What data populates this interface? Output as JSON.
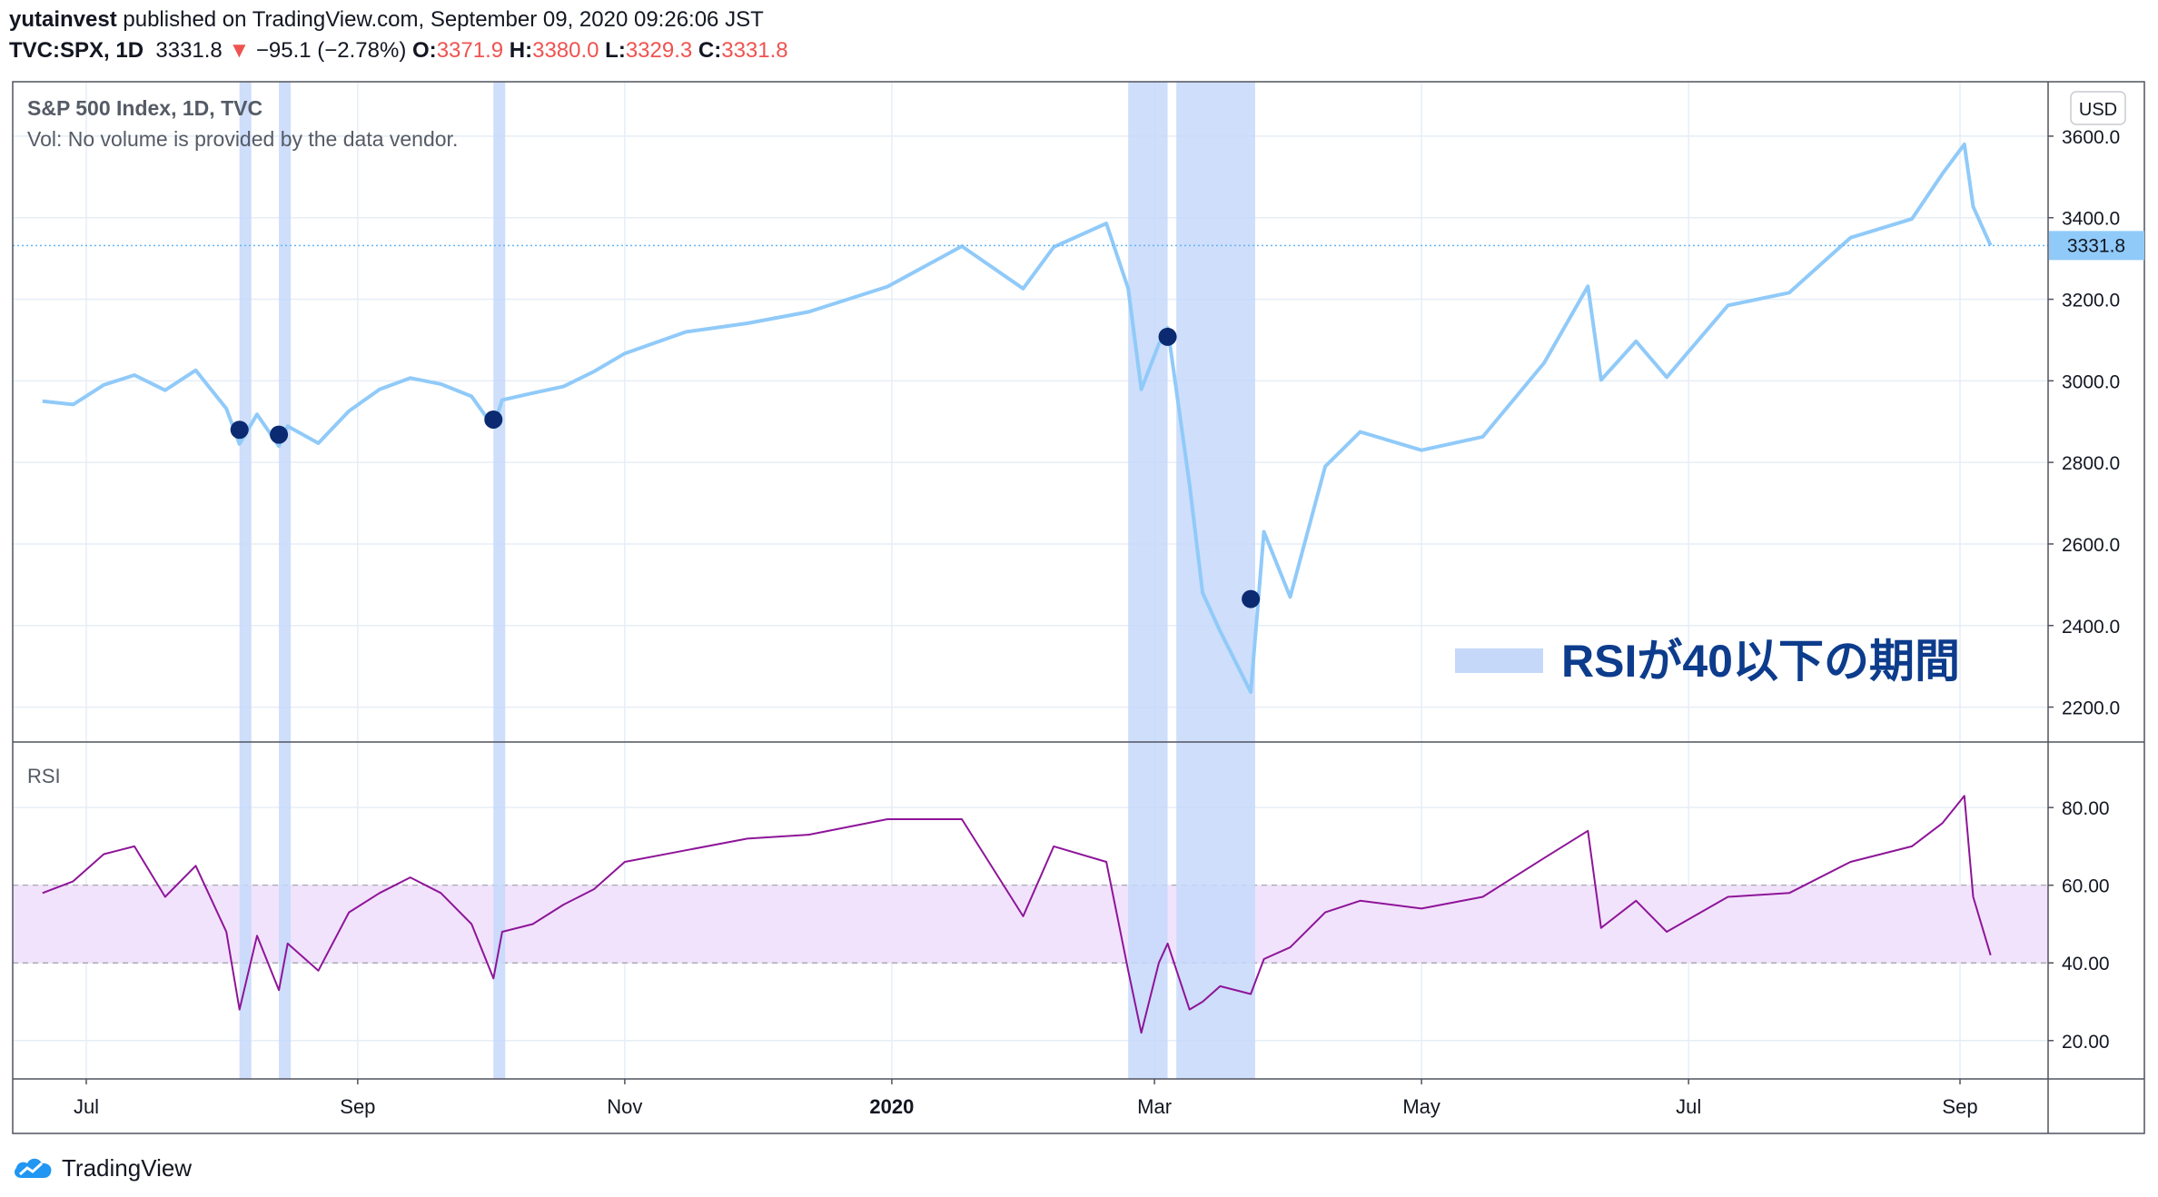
{
  "header": {
    "author": "yutainvest",
    "published": "published on TradingView.com, September 09, 2020 09:26:06 JST",
    "symbol": "TVC:SPX, 1D",
    "price": "3331.8",
    "arrow": "▼",
    "change": "−95.1 (−2.78%)",
    "o_label": "O:",
    "o_value": "3371.9",
    "h_label": "H:",
    "h_value": "3380.0",
    "l_label": "L:",
    "l_value": "3329.3",
    "c_label": "C:",
    "c_value": "3331.8"
  },
  "price_pane": {
    "title": "S&P 500 Index, 1D, TVC",
    "vol_note": "Vol: No volume is provided by the data vendor.",
    "currency": "USD",
    "last_price_label": "3331.8",
    "annotation": "RSIが40以下の期間"
  },
  "rsi_pane": {
    "title": "RSI"
  },
  "footer": {
    "brand": "TradingView"
  },
  "colors": {
    "price_line": "#90caf9",
    "rsi_line": "#8e1599",
    "highlight": "#c5d8fa",
    "marker": "#0b2a72",
    "rsi_band": "#f2e3fc",
    "annotation_text": "#0d3c8c"
  },
  "chart_data": [
    {
      "type": "line",
      "title": "S&P 500 Index, 1D, TVC",
      "ylabel": "USD",
      "ylim": [
        2130,
        3700
      ],
      "yticks": [
        "2200.0",
        "2400.0",
        "2600.0",
        "2800.0",
        "3000.0",
        "3200.0",
        "3400.0",
        "3600.0"
      ],
      "x_ticks": [
        "Jul",
        "Sep",
        "Nov",
        "2020",
        "Mar",
        "May",
        "Jul",
        "Sep"
      ],
      "x": [
        "2019-06-21",
        "2019-06-28",
        "2019-07-05",
        "2019-07-12",
        "2019-07-19",
        "2019-07-26",
        "2019-08-02",
        "2019-08-05",
        "2019-08-09",
        "2019-08-14",
        "2019-08-16",
        "2019-08-23",
        "2019-08-30",
        "2019-09-06",
        "2019-09-13",
        "2019-09-20",
        "2019-09-27",
        "2019-10-02",
        "2019-10-04",
        "2019-10-11",
        "2019-10-18",
        "2019-10-25",
        "2019-11-01",
        "2019-11-15",
        "2019-11-29",
        "2019-12-13",
        "2019-12-31",
        "2020-01-17",
        "2020-01-31",
        "2020-02-07",
        "2020-02-19",
        "2020-02-24",
        "2020-02-27",
        "2020-03-02",
        "2020-03-04",
        "2020-03-09",
        "2020-03-12",
        "2020-03-16",
        "2020-03-23",
        "2020-03-26",
        "2020-04-01",
        "2020-04-09",
        "2020-04-17",
        "2020-05-01",
        "2020-05-15",
        "2020-05-29",
        "2020-06-08",
        "2020-06-11",
        "2020-06-19",
        "2020-06-26",
        "2020-07-10",
        "2020-07-24",
        "2020-08-07",
        "2020-08-21",
        "2020-08-28",
        "2020-09-02",
        "2020-09-04",
        "2020-09-08"
      ],
      "series": [
        {
          "values": [
            2950,
            2942,
            2990,
            3014,
            2977,
            3026,
            2932,
            2845,
            2918,
            2840,
            2889,
            2847,
            2926,
            2979,
            3007,
            2992,
            2962,
            2887,
            2953,
            2970,
            2986,
            3023,
            3067,
            3120,
            3141,
            3169,
            3231,
            3330,
            3226,
            3328,
            3386,
            3226,
            2979,
            3090,
            3130,
            2746,
            2480,
            2386,
            2237,
            2630,
            2470,
            2790,
            2875,
            2830,
            2863,
            3044,
            3232,
            3002,
            3097,
            3009,
            3185,
            3216,
            3351,
            3397,
            3508,
            3580,
            3427,
            3332
          ]
        }
      ],
      "markers": [
        {
          "x": "2019-08-05",
          "y": 2880
        },
        {
          "x": "2019-08-14",
          "y": 2868
        },
        {
          "x": "2019-10-02",
          "y": 2905
        },
        {
          "x": "2020-03-04",
          "y": 3108
        },
        {
          "x": "2020-03-23",
          "y": 2465
        }
      ],
      "highlight_periods": [
        [
          "2019-08-05",
          "2019-08-07"
        ],
        [
          "2019-08-14",
          "2019-08-15"
        ],
        [
          "2019-10-02",
          "2019-10-03"
        ],
        [
          "2020-02-24",
          "2020-03-04"
        ],
        [
          "2020-03-06",
          "2020-03-24"
        ]
      ],
      "last_value": 3331.8
    },
    {
      "type": "line",
      "title": "RSI",
      "ylim": [
        12,
        95
      ],
      "yticks": [
        "20.00",
        "40.00",
        "60.00",
        "80.00"
      ],
      "bands": [
        40,
        60
      ],
      "x": [
        "2019-06-21",
        "2019-06-28",
        "2019-07-05",
        "2019-07-12",
        "2019-07-19",
        "2019-07-26",
        "2019-08-02",
        "2019-08-05",
        "2019-08-09",
        "2019-08-14",
        "2019-08-16",
        "2019-08-23",
        "2019-08-30",
        "2019-09-06",
        "2019-09-13",
        "2019-09-20",
        "2019-09-27",
        "2019-10-02",
        "2019-10-04",
        "2019-10-11",
        "2019-10-18",
        "2019-10-25",
        "2019-11-01",
        "2019-11-15",
        "2019-11-29",
        "2019-12-13",
        "2019-12-31",
        "2020-01-17",
        "2020-01-31",
        "2020-02-07",
        "2020-02-19",
        "2020-02-24",
        "2020-02-27",
        "2020-03-02",
        "2020-03-04",
        "2020-03-09",
        "2020-03-12",
        "2020-03-16",
        "2020-03-23",
        "2020-03-26",
        "2020-04-01",
        "2020-04-09",
        "2020-04-17",
        "2020-05-01",
        "2020-05-15",
        "2020-05-29",
        "2020-06-08",
        "2020-06-11",
        "2020-06-19",
        "2020-06-26",
        "2020-07-10",
        "2020-07-24",
        "2020-08-07",
        "2020-08-21",
        "2020-08-28",
        "2020-09-02",
        "2020-09-04",
        "2020-09-08"
      ],
      "series": [
        {
          "values": [
            58,
            61,
            68,
            70,
            57,
            65,
            48,
            28,
            47,
            33,
            45,
            38,
            53,
            58,
            62,
            58,
            50,
            36,
            48,
            50,
            55,
            59,
            66,
            69,
            72,
            73,
            77,
            77,
            52,
            70,
            66,
            38,
            22,
            40,
            45,
            28,
            30,
            34,
            32,
            41,
            44,
            53,
            56,
            54,
            57,
            67,
            74,
            49,
            56,
            48,
            57,
            58,
            66,
            70,
            76,
            83,
            57,
            42
          ]
        }
      ]
    }
  ]
}
